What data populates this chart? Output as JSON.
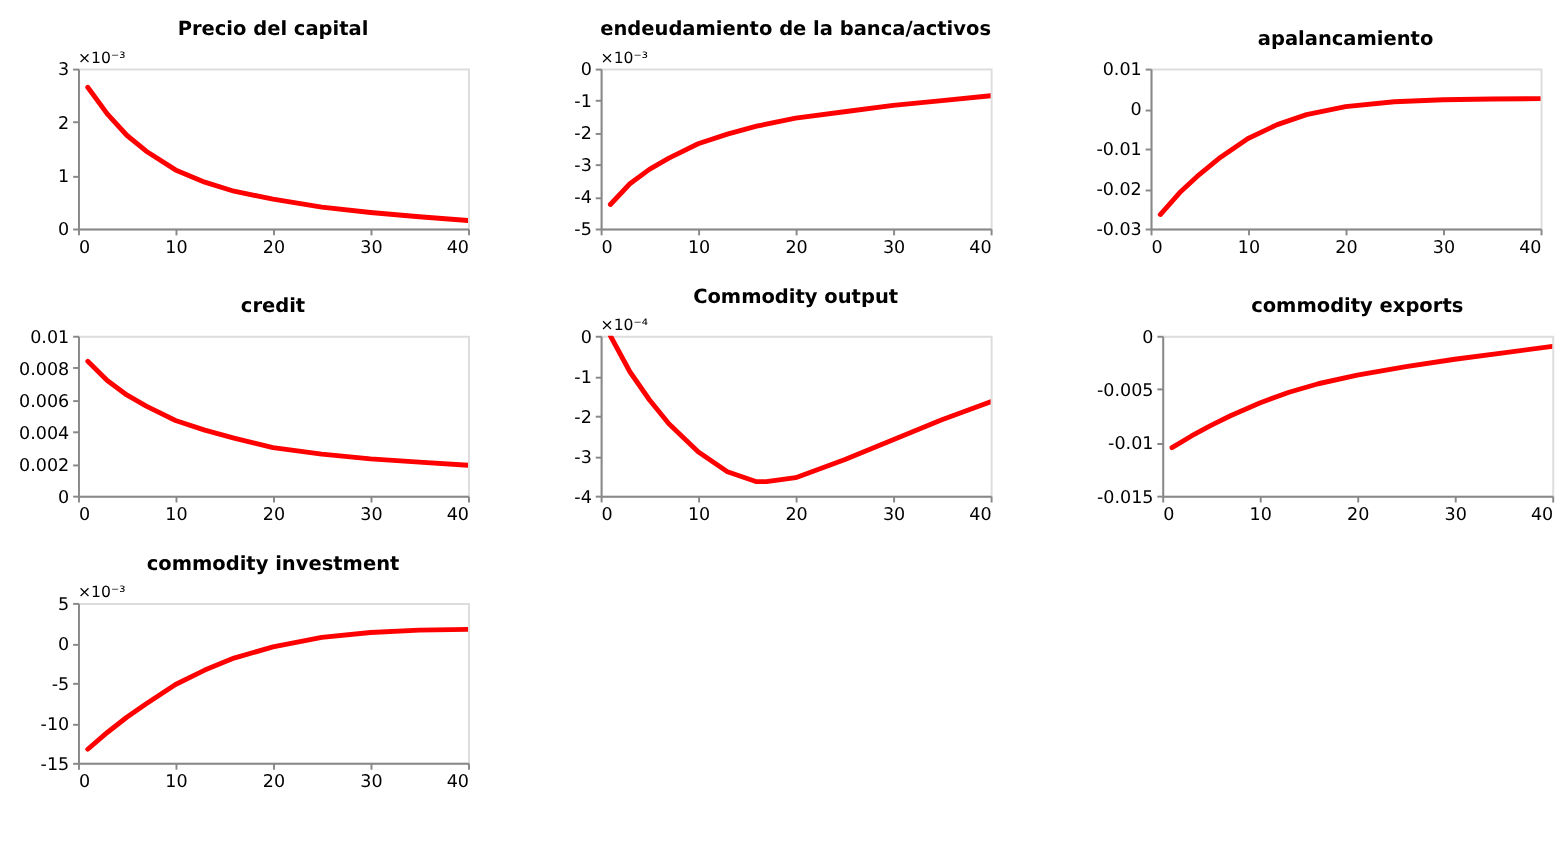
{
  "chart_data": [
    {
      "type": "line",
      "title": "Precio del capital",
      "annotations": [
        "×10⁻³"
      ],
      "color": "#ff0000",
      "x": [
        1,
        3,
        5,
        7,
        10,
        13,
        16,
        20,
        25,
        30,
        35,
        40
      ],
      "values": [
        2.65,
        2.15,
        1.75,
        1.45,
        1.1,
        0.87,
        0.7,
        0.55,
        0.4,
        0.3,
        0.22,
        0.15
      ],
      "xlim": [
        0,
        40
      ],
      "xticks": [
        0,
        10,
        20,
        30,
        40
      ],
      "ylim": [
        0,
        3
      ],
      "yticks": [
        0,
        1,
        2,
        3
      ],
      "grid": false
    },
    {
      "type": "line",
      "title": "endeudamiento de la banca/activos",
      "annotations": [
        "×10⁻³"
      ],
      "color": "#ff0000",
      "x": [
        1,
        3,
        5,
        7,
        10,
        13,
        16,
        20,
        25,
        30,
        35,
        40
      ],
      "values": [
        -4.25,
        -3.6,
        -3.15,
        -2.8,
        -2.35,
        -2.05,
        -1.8,
        -1.55,
        -1.35,
        -1.15,
        -1.0,
        -0.85
      ],
      "xlim": [
        0,
        40
      ],
      "xticks": [
        0,
        10,
        20,
        30,
        40
      ],
      "ylim": [
        -5,
        0
      ],
      "yticks": [
        -5,
        -4,
        -3,
        -2,
        -1,
        0
      ],
      "grid": false
    },
    {
      "type": "line",
      "title": "apalancamiento",
      "color": "#ff0000",
      "x": [
        1,
        3,
        5,
        7,
        10,
        13,
        16,
        20,
        25,
        30,
        35,
        40
      ],
      "values": [
        -0.0265,
        -0.021,
        -0.0165,
        -0.0125,
        -0.0075,
        -0.004,
        -0.0015,
        0.0005,
        0.0017,
        0.0022,
        0.0024,
        0.0025
      ],
      "xlim": [
        0,
        40
      ],
      "xticks": [
        0,
        10,
        20,
        30,
        40
      ],
      "ylim": [
        -0.03,
        0.01
      ],
      "yticks": [
        -0.03,
        -0.02,
        -0.01,
        0,
        0.01
      ],
      "grid": false
    },
    {
      "type": "line",
      "title": "credit",
      "color": "#ff0000",
      "x": [
        1,
        3,
        5,
        7,
        10,
        13,
        16,
        20,
        25,
        30,
        35,
        40
      ],
      "values": [
        0.0084,
        0.0072,
        0.0063,
        0.0056,
        0.0047,
        0.0041,
        0.0036,
        0.003,
        0.0026,
        0.0023,
        0.0021,
        0.0019
      ],
      "xlim": [
        0,
        40
      ],
      "xticks": [
        0,
        10,
        20,
        30,
        40
      ],
      "ylim": [
        0,
        0.01
      ],
      "yticks": [
        0,
        0.002,
        0.004,
        0.006,
        0.008,
        0.01
      ],
      "grid": false
    },
    {
      "type": "line",
      "title": "Commodity output",
      "annotations": [
        "×10⁻⁴"
      ],
      "color": "#ff0000",
      "x": [
        1,
        3,
        5,
        7,
        10,
        13,
        16,
        17,
        20,
        25,
        30,
        35,
        40
      ],
      "values": [
        0,
        -0.9,
        -1.6,
        -2.2,
        -2.9,
        -3.4,
        -3.65,
        -3.65,
        -3.55,
        -3.1,
        -2.6,
        -2.1,
        -1.65
      ],
      "xlim": [
        0,
        40
      ],
      "xticks": [
        0,
        10,
        20,
        30,
        40
      ],
      "ylim": [
        -4,
        0
      ],
      "yticks": [
        -4,
        -3,
        -2,
        -1,
        0
      ],
      "grid": false
    },
    {
      "type": "line",
      "title": "commodity exports",
      "color": "#ff0000",
      "x": [
        1,
        3,
        5,
        7,
        10,
        13,
        16,
        20,
        25,
        30,
        35,
        40
      ],
      "values": [
        -0.0105,
        -0.0094,
        -0.0084,
        -0.0075,
        -0.0063,
        -0.0053,
        -0.0045,
        -0.0037,
        -0.0029,
        -0.0022,
        -0.0016,
        -0.001
      ],
      "xlim": [
        0,
        40
      ],
      "xticks": [
        0,
        10,
        20,
        30,
        40
      ],
      "ylim": [
        -0.015,
        0
      ],
      "yticks": [
        -0.015,
        -0.01,
        -0.005,
        0
      ],
      "grid": false
    },
    {
      "type": "line",
      "title": "commodity investment",
      "annotations": [
        "×10⁻³"
      ],
      "color": "#ff0000",
      "x": [
        1,
        3,
        5,
        7,
        10,
        13,
        16,
        20,
        25,
        30,
        35,
        40
      ],
      "values": [
        -13.3,
        -11.2,
        -9.3,
        -7.6,
        -5.2,
        -3.4,
        -1.9,
        -0.5,
        0.7,
        1.3,
        1.6,
        1.7
      ],
      "xlim": [
        0,
        40
      ],
      "xticks": [
        0,
        10,
        20,
        30,
        40
      ],
      "ylim": [
        -15,
        5
      ],
      "yticks": [
        -15,
        -10,
        -5,
        0,
        5
      ],
      "grid": false
    }
  ]
}
